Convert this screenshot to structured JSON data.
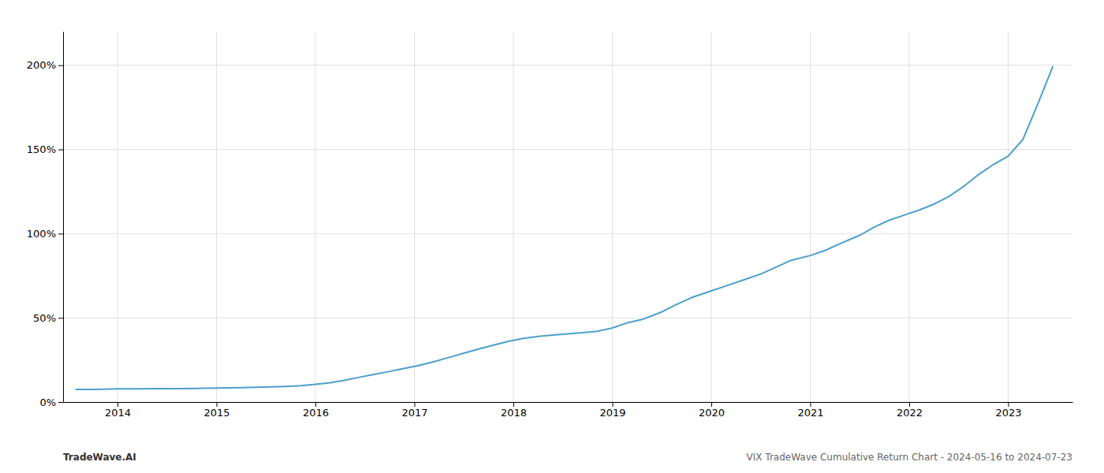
{
  "chart_data": {
    "type": "line",
    "x": [
      2013.58,
      2013.75,
      2014.0,
      2014.2,
      2014.4,
      2014.6,
      2014.8,
      2015.0,
      2015.1,
      2015.25,
      2015.4,
      2015.55,
      2015.7,
      2015.85,
      2016.0,
      2016.15,
      2016.3,
      2016.45,
      2016.6,
      2016.75,
      2016.9,
      2017.05,
      2017.2,
      2017.35,
      2017.5,
      2017.65,
      2017.8,
      2017.95,
      2018.1,
      2018.25,
      2018.4,
      2018.55,
      2018.7,
      2018.85,
      2019.0,
      2019.15,
      2019.3,
      2019.5,
      2019.65,
      2019.8,
      2020.0,
      2020.15,
      2020.3,
      2020.5,
      2020.65,
      2020.8,
      2021.0,
      2021.15,
      2021.3,
      2021.5,
      2021.65,
      2021.8,
      2021.95,
      2022.1,
      2022.25,
      2022.4,
      2022.55,
      2022.7,
      2022.85,
      2023.0,
      2023.15,
      2023.3,
      2023.45
    ],
    "values": [
      0.075,
      0.075,
      0.078,
      0.078,
      0.079,
      0.08,
      0.081,
      0.083,
      0.084,
      0.086,
      0.088,
      0.09,
      0.093,
      0.097,
      0.105,
      0.115,
      0.13,
      0.148,
      0.165,
      0.182,
      0.2,
      0.218,
      0.24,
      0.265,
      0.29,
      0.315,
      0.338,
      0.36,
      0.378,
      0.39,
      0.398,
      0.405,
      0.412,
      0.42,
      0.44,
      0.47,
      0.49,
      0.535,
      0.58,
      0.62,
      0.66,
      0.69,
      0.72,
      0.76,
      0.8,
      0.84,
      0.87,
      0.9,
      0.94,
      0.99,
      1.04,
      1.08,
      1.11,
      1.14,
      1.175,
      1.22,
      1.28,
      1.35,
      1.41,
      1.46,
      1.56,
      1.77,
      1.99
    ],
    "color": "#4d9fcc",
    "xlim": [
      2013.45,
      2023.65
    ],
    "xticks": [
      2014,
      2015,
      2016,
      2017,
      2018,
      2019,
      2020,
      2021,
      2022,
      2023
    ],
    "ylim": [
      0.0,
      2.2
    ],
    "yticks": [
      {
        "value": 0.0,
        "label": "0%"
      },
      {
        "value": 0.5,
        "label": "50%"
      },
      {
        "value": 1.0,
        "label": "100%"
      },
      {
        "value": 1.5,
        "label": "150%"
      },
      {
        "value": 2.0,
        "label": "200%"
      }
    ],
    "grid": true,
    "annotations": [
      "TradeWave.AI",
      "VIX TradeWave Cumulative Return Chart - 2024-05-16 to 2024-07-23"
    ]
  }
}
